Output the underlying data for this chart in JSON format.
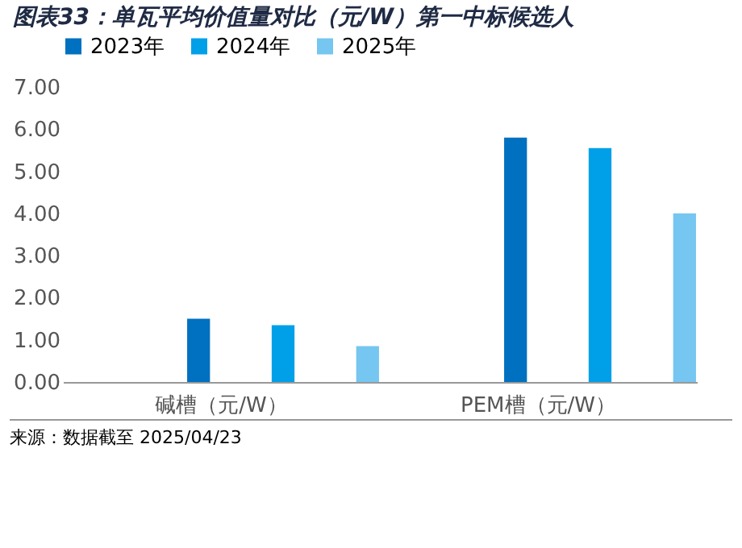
{
  "chart_data": {
    "type": "bar",
    "title": "图表33：单瓦平均价值量对比（元/W）第一中标候选人",
    "categories": [
      "碱槽（元/W）",
      "PEM槽（元/W）"
    ],
    "series": [
      {
        "name": "2023年",
        "color": "#0070c0",
        "values": [
          1.5,
          5.8
        ]
      },
      {
        "name": "2024年",
        "color": "#00a0e9",
        "values": [
          1.35,
          5.55
        ]
      },
      {
        "name": "2025年",
        "color": "#75c6f0",
        "values": [
          0.85,
          4.0
        ]
      }
    ],
    "ylim": [
      0,
      7
    ],
    "yticks": [
      {
        "value": 0,
        "label": "0.00"
      },
      {
        "value": 1,
        "label": "1.00"
      },
      {
        "value": 2,
        "label": "2.00"
      },
      {
        "value": 3,
        "label": "3.00"
      },
      {
        "value": 4,
        "label": "4.00"
      },
      {
        "value": 5,
        "label": "5.00"
      },
      {
        "value": 6,
        "label": "6.00"
      },
      {
        "value": 7,
        "label": "7.00"
      }
    ],
    "legend": "top",
    "grid": false,
    "annotations": [
      "来源：数据截至 2025/04/23"
    ]
  }
}
